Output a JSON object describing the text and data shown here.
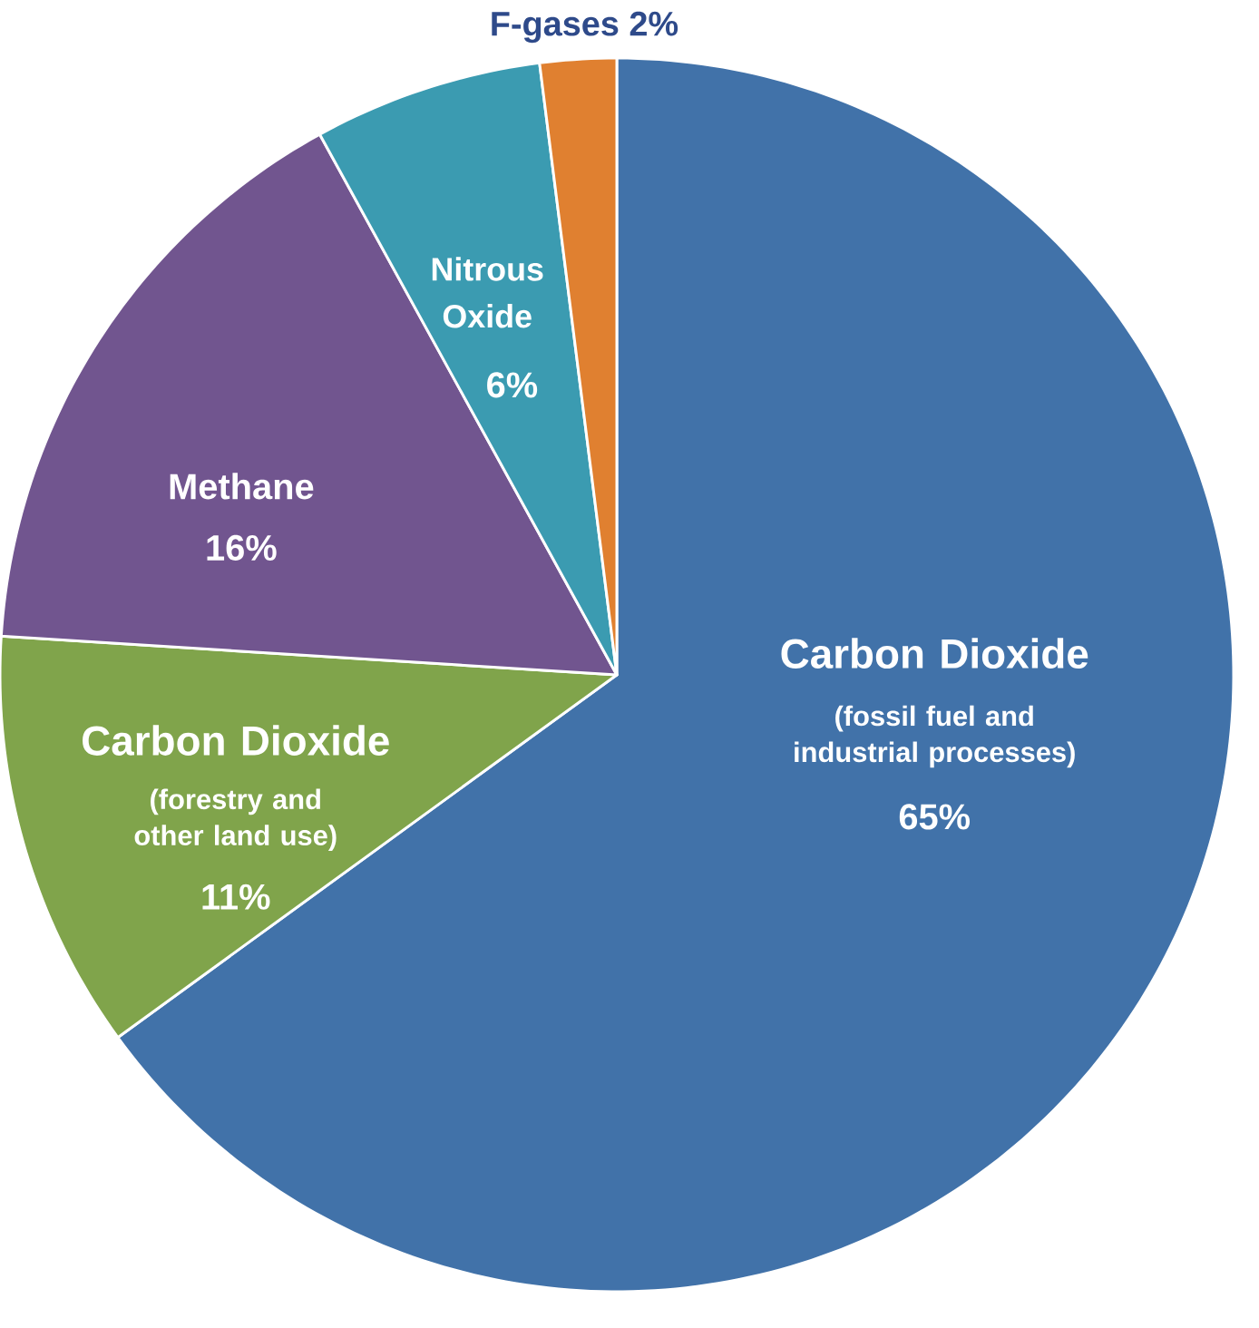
{
  "chart_data": {
    "type": "pie",
    "categories": [
      "Carbon Dioxide",
      "Carbon Dioxide",
      "Methane",
      "Nitrous Oxide",
      "F-gases"
    ],
    "values": [
      65,
      11,
      16,
      6,
      2
    ],
    "value_labels": [
      "65%",
      "11%",
      "16%",
      "6%",
      "2%"
    ],
    "colors": [
      "#4172a9",
      "#80a44b",
      "#71558f",
      "#3b9bb1",
      "#e08030"
    ],
    "annotations": [
      "(fossil fuel and industrial processes)",
      "(forestry and other land use)"
    ]
  }
}
